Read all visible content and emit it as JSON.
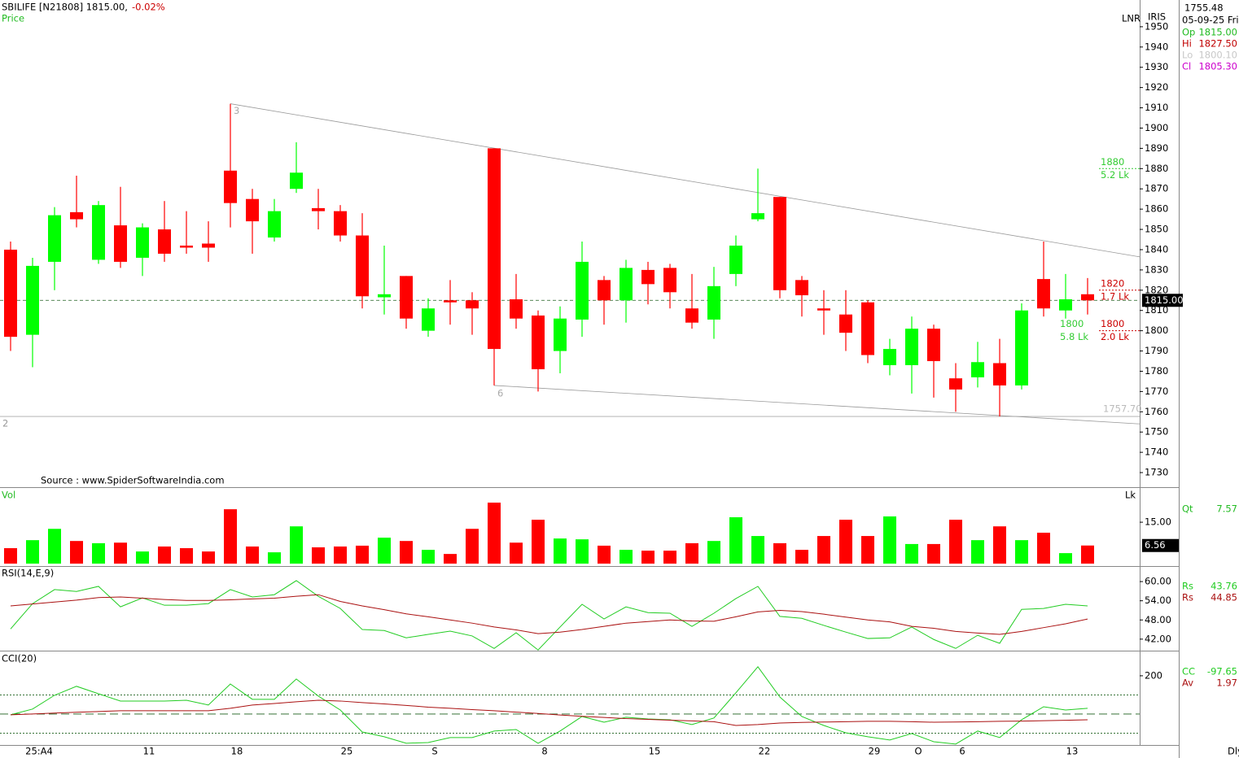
{
  "header": {
    "price": 1755.48,
    "date": "05-09-25 Fri",
    "readouts": [
      {
        "key": "Op",
        "value": "1815.00",
        "color": "#22bb22"
      },
      {
        "key": "Hi",
        "value": "1827.50",
        "color": "#c00000"
      },
      {
        "key": "Lo",
        "value": "1800.10",
        "color": "#c8c8c8"
      },
      {
        "key": "Cl",
        "value": "1805.30",
        "color": "#cc00cc"
      }
    ]
  },
  "chart_data": [
    {
      "type": "candlestick",
      "title": "SBILIFE [N21808] 1815.00,",
      "subtitle": "-0.02%",
      "label": "Price",
      "source": "Source : www.SpiderSoftwareIndia.com",
      "annotations": [
        "LNR",
        "IRIS"
      ],
      "x_end_label": "Dly",
      "categories": [
        null,
        "25:A4",
        null,
        null,
        null,
        null,
        "11",
        null,
        null,
        null,
        "18",
        null,
        null,
        null,
        null,
        "25",
        null,
        null,
        null,
        "S",
        null,
        null,
        null,
        null,
        "8",
        null,
        null,
        null,
        null,
        "15",
        null,
        null,
        null,
        null,
        "22",
        null,
        null,
        null,
        null,
        "29",
        null,
        "O",
        null,
        "6",
        null,
        null,
        null,
        null,
        "13",
        null
      ],
      "open": [
        1840,
        1798,
        1834,
        1858.5,
        1835,
        1852,
        1836,
        1850,
        1842,
        1843,
        1879,
        1865,
        1846,
        1870,
        1860.5,
        1859,
        1847,
        1816.5,
        1827,
        1800,
        1815,
        1815,
        1890,
        1815.5,
        1807.5,
        1790,
        1805.5,
        1825,
        1815,
        1830,
        1831,
        1811,
        1805.5,
        1828,
        1855,
        1866,
        1825,
        1811,
        1808,
        1814,
        1783,
        1783,
        1801,
        1776.5,
        1777,
        1784,
        1773,
        1825.5,
        1810,
        1818
      ],
      "high": [
        1844,
        1836,
        1861,
        1876.5,
        1864,
        1871,
        1853,
        1864,
        1859,
        1854,
        1912,
        1870,
        1865,
        1893,
        1870,
        1862,
        1858,
        1842,
        1827,
        1816,
        1825,
        1819,
        1890,
        1828,
        1810,
        1812,
        1844,
        1827,
        1835,
        1834,
        1833,
        1828,
        1831.5,
        1847,
        1880,
        1866,
        1827,
        1820,
        1820,
        1815,
        1796,
        1807,
        1803,
        1784,
        1794.5,
        1796,
        1813.5,
        1844,
        1828,
        1826
      ],
      "low": [
        1790,
        1782,
        1820,
        1851,
        1833,
        1831,
        1827,
        1834,
        1838,
        1834,
        1851,
        1838,
        1844,
        1868,
        1850,
        1844,
        1811,
        1808,
        1801,
        1797,
        1803,
        1798,
        1773,
        1801,
        1770,
        1779,
        1797,
        1803,
        1804,
        1813,
        1811,
        1801,
        1796,
        1822,
        1854,
        1816,
        1807,
        1798,
        1790,
        1784,
        1778,
        1769,
        1767,
        1760,
        1772,
        1757.7,
        1771,
        1807,
        1806,
        1808
      ],
      "close": [
        1797,
        1832,
        1857,
        1855,
        1862,
        1834,
        1851,
        1838,
        1841,
        1841,
        1863,
        1854,
        1859,
        1878,
        1859,
        1847,
        1817,
        1818,
        1806,
        1811,
        1814,
        1811,
        1791,
        1806,
        1781,
        1806,
        1834,
        1815,
        1831,
        1823,
        1819,
        1804,
        1822,
        1842,
        1858,
        1820,
        1817.5,
        1810,
        1799,
        1788,
        1791,
        1801,
        1785,
        1771,
        1784.5,
        1773,
        1810,
        1811,
        1815.5,
        1815
      ],
      "up_color": "#00ff00",
      "down_color": "#ff0000",
      "ylim": [
        1723.2,
        1963.2
      ],
      "yticks": [
        1730,
        1740,
        1750,
        1760,
        1770,
        1780,
        1790,
        1800,
        1810,
        1820,
        1830,
        1840,
        1850,
        1860,
        1870,
        1880,
        1890,
        1900,
        1910,
        1920,
        1930,
        1940,
        1950
      ],
      "last_price": {
        "value": 1815,
        "label": "1815.00"
      },
      "support": {
        "value": 1757.7,
        "label": "1757.70",
        "tag": "2"
      },
      "trendlines": [
        {
          "from": [
            10,
            1912
          ],
          "to": [
            51.4,
            1836.4
          ],
          "tag": "3"
        },
        {
          "from": [
            22,
            1773
          ],
          "to": [
            51.4,
            1754
          ],
          "tag": "6"
        }
      ],
      "levels": [
        {
          "value": 1880,
          "qty": "5.2 Lk",
          "color": "#33cc33"
        },
        {
          "value": 1820,
          "qty": "1.7 Lk",
          "color": "#cc0000"
        },
        {
          "value": 1800,
          "qty": "2.0 Lk",
          "color": "#cc0000"
        },
        {
          "value": 1800,
          "qty": "5.8 Lk",
          "color": "#33cc33"
        }
      ]
    },
    {
      "type": "bar",
      "label": "Vol",
      "unit": "Lk",
      "readout": {
        "key": "Qt",
        "value": 7.57,
        "color": "#22bb22"
      },
      "values": [
        5.6,
        8.5,
        12.6,
        8.2,
        7.4,
        7.6,
        4.4,
        6.2,
        5.6,
        4.4,
        19.7,
        6.2,
        4.1,
        13.5,
        5.9,
        6.2,
        6.5,
        9.4,
        8.2,
        5.0,
        3.5,
        12.6,
        22.1,
        7.6,
        15.9,
        9.1,
        8.8,
        6.5,
        5.0,
        4.7,
        4.7,
        7.4,
        8.2,
        16.8,
        10.0,
        7.4,
        5.0,
        10.0,
        15.9,
        10.0,
        17.1,
        7.1,
        7.1,
        15.9,
        8.5,
        13.5,
        8.5,
        11.2,
        3.8,
        6.56
      ],
      "ylim": [
        0,
        27.4
      ],
      "yticks": [
        {
          "value": 15,
          "label": "15.00"
        }
      ]
    },
    {
      "type": "line",
      "label": "RSI(14,E,9)",
      "series": [
        {
          "name": "Rs",
          "readout": 43.76,
          "color": "#22cc22",
          "values": [
            45.2,
            53.1,
            57.5,
            56.9,
            58.5,
            52.1,
            54.9,
            52.6,
            52.6,
            53.1,
            57.5,
            55.2,
            55.9,
            60.3,
            55.4,
            51.6,
            45.0,
            44.7,
            42.4,
            43.5,
            44.5,
            43.0,
            39.1,
            44.0,
            38.6,
            45.8,
            52.9,
            48.3,
            52.1,
            50.3,
            50.1,
            46.0,
            50.1,
            54.7,
            58.5,
            49.1,
            48.5,
            46.3,
            44.2,
            42.2,
            42.4,
            45.8,
            41.9,
            39.1,
            43.2,
            40.7,
            51.3,
            51.6,
            52.9,
            52.4
          ]
        },
        {
          "name": "Rs",
          "readout": 44.85,
          "color": "#aa1111",
          "values": [
            52.4,
            53.0,
            53.6,
            54.2,
            55.0,
            55.2,
            54.8,
            54.4,
            54.1,
            54.1,
            54.3,
            54.6,
            54.8,
            55.4,
            55.9,
            53.8,
            52.4,
            51.2,
            49.9,
            49.0,
            48.0,
            47.0,
            45.8,
            44.9,
            43.7,
            44.2,
            45.0,
            46.0,
            47.0,
            47.5,
            48.0,
            47.7,
            47.6,
            49.0,
            50.5,
            51.0,
            50.6,
            49.8,
            48.9,
            48.0,
            47.4,
            46.0,
            45.4,
            44.4,
            43.9,
            43.5,
            44.4,
            45.6,
            46.8,
            48.3
          ]
        }
      ],
      "ylim": [
        38.4,
        64.6
      ],
      "yticks": [
        {
          "value": 42,
          "label": "42.00"
        },
        {
          "value": 48,
          "label": "48.00"
        },
        {
          "value": 54,
          "label": "54.00"
        },
        {
          "value": 60,
          "label": "60.00"
        }
      ]
    },
    {
      "type": "line",
      "label": "CCI(20)",
      "levels": [
        100,
        0,
        -100
      ],
      "series": [
        {
          "name": "CC",
          "readout": -97.65,
          "color": "#22cc22",
          "values": [
            -4,
            26,
            98,
            145,
            106,
            68,
            68,
            68,
            72,
            47,
            157,
            77,
            77,
            183,
            94,
            21,
            -94,
            -119,
            -153,
            -149,
            -123,
            -123,
            -89,
            -81,
            -153,
            -89,
            -13,
            -43,
            -17,
            -26,
            -30,
            -55,
            -21,
            111,
            247,
            89,
            -13,
            -60,
            -98,
            -119,
            -136,
            -102,
            -145,
            -157,
            -89,
            -123,
            -30,
            38,
            21,
            30
          ]
        },
        {
          "name": "Av",
          "readout": 1.97,
          "color": "#aa1111",
          "values": [
            -4,
            0,
            5,
            9,
            13,
            17,
            17,
            17,
            17,
            17,
            30,
            47,
            55,
            64,
            72,
            68,
            60,
            53,
            45,
            36,
            30,
            23,
            17,
            10,
            3,
            -5,
            -12,
            -18,
            -24,
            -28,
            -32,
            -36,
            -40,
            -60,
            -55,
            -47,
            -44,
            -42,
            -40,
            -38,
            -38,
            -40,
            -43,
            -42,
            -40,
            -38,
            -37,
            -35,
            -33,
            -30
          ]
        }
      ],
      "ylim": [
        -162,
        323
      ],
      "yticks": [
        200
      ]
    }
  ]
}
